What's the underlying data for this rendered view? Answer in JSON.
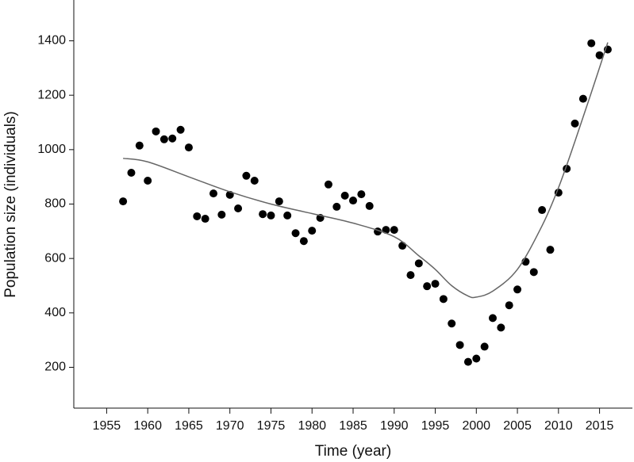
{
  "chart_data": {
    "type": "scatter",
    "x_label": "Time (year)",
    "y_label": "Population size (individuals)",
    "xlim": [
      1951,
      2019
    ],
    "ylim": [
      50,
      1550
    ],
    "xticks": [
      1955,
      1960,
      1965,
      1970,
      1975,
      1980,
      1985,
      1990,
      1995,
      2000,
      2005,
      2010,
      2015
    ],
    "yticks": [
      200,
      400,
      600,
      800,
      1000,
      1200,
      1400
    ],
    "grid": false,
    "series": [
      {
        "type": "scatter",
        "color": "#000000",
        "x": [
          1957,
          1958,
          1959,
          1960,
          1961,
          1962,
          1963,
          1964,
          1965,
          1966,
          1967,
          1968,
          1969,
          1970,
          1971,
          1972,
          1973,
          1974,
          1975,
          1976,
          1977,
          1978,
          1979,
          1980,
          1981,
          1982,
          1983,
          1984,
          1985,
          1986,
          1987,
          1988,
          1989,
          1990,
          1991,
          1992,
          1993,
          1994,
          1995,
          1996,
          1997,
          1998,
          1999,
          2000,
          2001,
          2002,
          2003,
          2004,
          2005,
          2006,
          2007,
          2008,
          2009,
          2010,
          2011,
          2012,
          2013,
          2014,
          2015,
          2016
        ],
        "values": [
          810,
          915,
          1015,
          886,
          1067,
          1038,
          1041,
          1073,
          1008,
          755,
          746,
          839,
          761,
          834,
          784,
          904,
          886,
          763,
          758,
          810,
          758,
          693,
          664,
          702,
          749,
          872,
          790,
          831,
          813,
          836,
          793,
          699,
          705,
          705,
          647,
          539,
          582,
          498,
          507,
          451,
          361,
          282,
          220,
          232,
          276,
          381,
          346,
          428,
          486,
          588,
          550,
          778,
          632,
          842,
          930,
          1096,
          1187,
          1391,
          1347,
          1368
        ]
      },
      {
        "type": "line",
        "color": "#666666",
        "x": [
          1957,
          1960,
          1965,
          1970,
          1975,
          1980,
          1985,
          1990,
          1993,
          1995,
          1997,
          1999,
          2000,
          2002,
          2005,
          2008,
          2010,
          2012,
          2014,
          2016
        ],
        "values": [
          968,
          955,
          900,
          845,
          800,
          765,
          730,
          680,
          610,
          560,
          500,
          462,
          458,
          480,
          560,
          720,
          860,
          1030,
          1210,
          1394
        ]
      }
    ]
  }
}
